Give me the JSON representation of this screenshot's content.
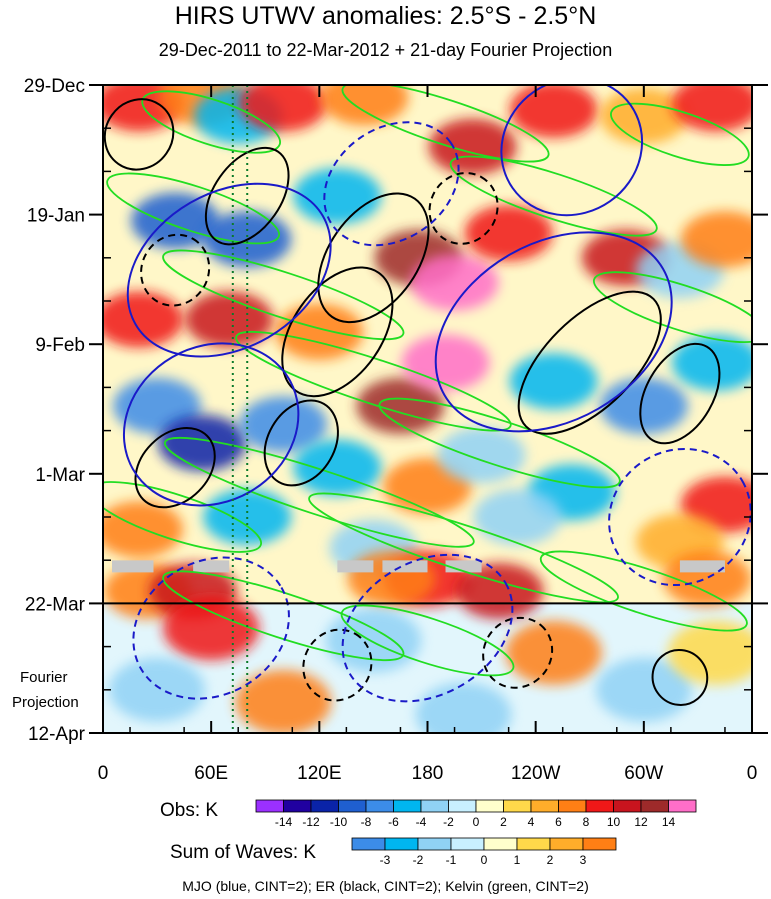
{
  "chart_data": {
    "type": "heatmap",
    "title": "HIRS UTWV anomalies: 2.5°S - 2.5°N",
    "subtitle": "29-Dec-2011 to 22-Mar-2012 + 21-day Fourier Projection",
    "x_ticks": [
      "0",
      "60E",
      "120E",
      "180",
      "120W",
      "60W",
      "0"
    ],
    "x_tick_degrees": [
      0,
      60,
      120,
      180,
      240,
      300,
      360
    ],
    "y_ticks": [
      "29-Dec",
      "19-Jan",
      "9-Feb",
      "1-Mar",
      "22-Mar",
      "12-Apr"
    ],
    "y_tick_days": [
      0,
      21,
      42,
      63,
      84,
      105
    ],
    "xlim": [
      0,
      360
    ],
    "ylim_days": [
      0,
      105
    ],
    "observation_end_day": 84,
    "projection_label": [
      "Fourier",
      "Projection"
    ],
    "obs_colorbar": {
      "label": "Obs: K",
      "levels": [
        "-14",
        "-12",
        "-10",
        "-8",
        "-6",
        "-4",
        "-2",
        "0",
        "2",
        "4",
        "6",
        "8",
        "10",
        "12",
        "14"
      ],
      "colors": [
        "#9b30ff",
        "#2000a0",
        "#0a23a8",
        "#1f5fd0",
        "#3c8ce8",
        "#00b6f0",
        "#90d2f5",
        "#c8f0ff",
        "#ffffcc",
        "#ffd94a",
        "#ffad2a",
        "#ff7f15",
        "#f01818",
        "#c8141e",
        "#9e2a2a",
        "#ff6ec8"
      ]
    },
    "wave_colorbar": {
      "label": "Sum of Waves: K",
      "levels": [
        "-3",
        "-2",
        "-1",
        "0",
        "1",
        "2",
        "3"
      ],
      "colors": [
        "#3c8ce8",
        "#00b6f0",
        "#90d2f5",
        "#c8f0ff",
        "#ffffcc",
        "#ffd94a",
        "#ffad2a",
        "#ff7f15"
      ]
    },
    "contour_series": [
      {
        "name": "MJO",
        "color": "#1a1ac8",
        "cint": 2
      },
      {
        "name": "ER",
        "color": "#000000",
        "cint": 2
      },
      {
        "name": "Kelvin",
        "color": "#22dd22",
        "cint": 2
      }
    ],
    "reference_lines_degrees": [
      72,
      80
    ],
    "anomaly_blobs": [
      {
        "lon": 20,
        "day": 3,
        "value": 8
      },
      {
        "lon": 55,
        "day": 2,
        "value": 6
      },
      {
        "lon": 75,
        "day": 5,
        "value": -6
      },
      {
        "lon": 100,
        "day": 3,
        "value": 8
      },
      {
        "lon": 145,
        "day": 2,
        "value": 6
      },
      {
        "lon": 205,
        "day": 10,
        "value": 10
      },
      {
        "lon": 250,
        "day": 4,
        "value": 8
      },
      {
        "lon": 300,
        "day": 5,
        "value": 4
      },
      {
        "lon": 340,
        "day": 3,
        "value": 8
      },
      {
        "lon": 40,
        "day": 22,
        "value": -10
      },
      {
        "lon": 80,
        "day": 25,
        "value": -10
      },
      {
        "lon": 130,
        "day": 18,
        "value": -6
      },
      {
        "lon": 175,
        "day": 28,
        "value": 12
      },
      {
        "lon": 195,
        "day": 32,
        "value": 14
      },
      {
        "lon": 225,
        "day": 24,
        "value": 8
      },
      {
        "lon": 290,
        "day": 28,
        "value": 10
      },
      {
        "lon": 320,
        "day": 30,
        "value": -4
      },
      {
        "lon": 345,
        "day": 25,
        "value": 6
      },
      {
        "lon": 20,
        "day": 38,
        "value": 8
      },
      {
        "lon": 70,
        "day": 38,
        "value": 10
      },
      {
        "lon": 120,
        "day": 40,
        "value": 6
      },
      {
        "lon": 165,
        "day": 52,
        "value": 12
      },
      {
        "lon": 190,
        "day": 45,
        "value": 14
      },
      {
        "lon": 250,
        "day": 48,
        "value": -6
      },
      {
        "lon": 300,
        "day": 52,
        "value": -8
      },
      {
        "lon": 340,
        "day": 45,
        "value": -6
      },
      {
        "lon": 30,
        "day": 52,
        "value": -8
      },
      {
        "lon": 55,
        "day": 58,
        "value": -12
      },
      {
        "lon": 100,
        "day": 55,
        "value": -8
      },
      {
        "lon": 130,
        "day": 62,
        "value": -6
      },
      {
        "lon": 180,
        "day": 65,
        "value": 6
      },
      {
        "lon": 210,
        "day": 60,
        "value": -4
      },
      {
        "lon": 260,
        "day": 66,
        "value": -6
      },
      {
        "lon": 345,
        "day": 68,
        "value": 8
      },
      {
        "lon": 20,
        "day": 72,
        "value": 6
      },
      {
        "lon": 80,
        "day": 70,
        "value": -6
      },
      {
        "lon": 150,
        "day": 75,
        "value": -4
      },
      {
        "lon": 230,
        "day": 70,
        "value": -4
      },
      {
        "lon": 320,
        "day": 74,
        "value": 4
      },
      {
        "lon": 25,
        "day": 82,
        "value": 6
      },
      {
        "lon": 50,
        "day": 82,
        "value": 10
      },
      {
        "lon": 180,
        "day": 80,
        "value": 8
      },
      {
        "lon": 220,
        "day": 82,
        "value": 10
      },
      {
        "lon": 160,
        "day": 80,
        "value": 6
      },
      {
        "lon": 335,
        "day": 80,
        "value": 6
      },
      {
        "lon": 60,
        "day": 88,
        "value": 3
      },
      {
        "lon": 150,
        "day": 90,
        "value": -1
      },
      {
        "lon": 250,
        "day": 92,
        "value": 2
      },
      {
        "lon": 30,
        "day": 98,
        "value": -1
      },
      {
        "lon": 100,
        "day": 100,
        "value": 2
      },
      {
        "lon": 200,
        "day": 102,
        "value": -1
      },
      {
        "lon": 300,
        "day": 98,
        "value": -1
      },
      {
        "lon": 340,
        "day": 92,
        "value": 1
      }
    ],
    "missing_data": [
      {
        "lon_start": 5,
        "lon_end": 28,
        "day": 78
      },
      {
        "lon_start": 50,
        "lon_end": 70,
        "day": 78
      },
      {
        "lon_start": 130,
        "lon_end": 150,
        "day": 78
      },
      {
        "lon_start": 155,
        "lon_end": 180,
        "day": 78
      },
      {
        "lon_start": 190,
        "lon_end": 210,
        "day": 78
      },
      {
        "lon_start": 320,
        "lon_end": 345,
        "day": 78
      }
    ],
    "wave_contours": [
      {
        "series": "Kelvin",
        "lon": 60,
        "day": 6,
        "rx": 40,
        "ry": 4,
        "angle": 18,
        "dashed": false
      },
      {
        "series": "Kelvin",
        "lon": 190,
        "day": 6,
        "rx": 60,
        "ry": 4,
        "angle": 18,
        "dashed": false
      },
      {
        "series": "Kelvin",
        "lon": 320,
        "day": 8,
        "rx": 40,
        "ry": 4,
        "angle": 18,
        "dashed": false
      },
      {
        "series": "Kelvin",
        "lon": 50,
        "day": 20,
        "rx": 50,
        "ry": 4,
        "angle": 18,
        "dashed": false
      },
      {
        "series": "Kelvin",
        "lon": 250,
        "day": 18,
        "rx": 60,
        "ry": 4,
        "angle": 18,
        "dashed": false
      },
      {
        "series": "Kelvin",
        "lon": 100,
        "day": 34,
        "rx": 70,
        "ry": 4,
        "angle": 18,
        "dashed": false
      },
      {
        "series": "Kelvin",
        "lon": 320,
        "day": 36,
        "rx": 50,
        "ry": 4,
        "angle": 18,
        "dashed": false
      },
      {
        "series": "Kelvin",
        "lon": 150,
        "day": 48,
        "rx": 80,
        "ry": 4,
        "angle": 18,
        "dashed": false
      },
      {
        "series": "Kelvin",
        "lon": 220,
        "day": 58,
        "rx": 70,
        "ry": 4,
        "angle": 18,
        "dashed": false
      },
      {
        "series": "Kelvin",
        "lon": 120,
        "day": 66,
        "rx": 90,
        "ry": 4,
        "angle": 18,
        "dashed": false
      },
      {
        "series": "Kelvin",
        "lon": 200,
        "day": 75,
        "rx": 90,
        "ry": 4,
        "angle": 18,
        "dashed": false
      },
      {
        "series": "Kelvin",
        "lon": 40,
        "day": 70,
        "rx": 50,
        "ry": 4,
        "angle": 18,
        "dashed": false
      },
      {
        "series": "Kelvin",
        "lon": 300,
        "day": 82,
        "rx": 60,
        "ry": 4,
        "angle": 18,
        "dashed": false
      },
      {
        "series": "Kelvin",
        "lon": 100,
        "day": 86,
        "rx": 70,
        "ry": 4,
        "angle": 18,
        "dashed": false
      },
      {
        "series": "Kelvin",
        "lon": 180,
        "day": 90,
        "rx": 50,
        "ry": 4,
        "angle": 18,
        "dashed": false
      },
      {
        "series": "ER",
        "lon": 20,
        "day": 8,
        "rx": 20,
        "ry": 6,
        "angle": -55,
        "dashed": false
      },
      {
        "series": "ER",
        "lon": 80,
        "day": 18,
        "rx": 30,
        "ry": 6,
        "angle": -55,
        "dashed": false
      },
      {
        "series": "ER",
        "lon": 150,
        "day": 28,
        "rx": 40,
        "ry": 8,
        "angle": -55,
        "dashed": false
      },
      {
        "series": "ER",
        "lon": 130,
        "day": 40,
        "rx": 40,
        "ry": 8,
        "angle": -55,
        "dashed": false
      },
      {
        "series": "ER",
        "lon": 270,
        "day": 45,
        "rx": 50,
        "ry": 8,
        "angle": -45,
        "dashed": false
      },
      {
        "series": "ER",
        "lon": 320,
        "day": 50,
        "rx": 30,
        "ry": 6,
        "angle": -60,
        "dashed": false
      },
      {
        "series": "ER",
        "lon": 40,
        "day": 62,
        "rx": 25,
        "ry": 6,
        "angle": -45,
        "dashed": false
      },
      {
        "series": "ER",
        "lon": 110,
        "day": 58,
        "rx": 25,
        "ry": 6,
        "angle": -60,
        "dashed": false
      },
      {
        "series": "ER",
        "lon": 40,
        "day": 30,
        "rx": 20,
        "ry": 6,
        "angle": -60,
        "dashed": true
      },
      {
        "series": "ER",
        "lon": 200,
        "day": 20,
        "rx": 20,
        "ry": 6,
        "angle": -60,
        "dashed": true
      },
      {
        "series": "ER",
        "lon": 230,
        "day": 92,
        "rx": 20,
        "ry": 6,
        "angle": -50,
        "dashed": true
      },
      {
        "series": "ER",
        "lon": 130,
        "day": 94,
        "rx": 20,
        "ry": 6,
        "angle": -60,
        "dashed": true
      },
      {
        "series": "ER",
        "lon": 320,
        "day": 96,
        "rx": 15,
        "ry": 5,
        "angle": -40,
        "dashed": false
      },
      {
        "series": "MJO",
        "lon": 70,
        "day": 30,
        "rx": 60,
        "ry": 14,
        "angle": -30,
        "dashed": false
      },
      {
        "series": "MJO",
        "lon": 250,
        "day": 40,
        "rx": 70,
        "ry": 16,
        "angle": -30,
        "dashed": false
      },
      {
        "series": "MJO",
        "lon": 260,
        "day": 10,
        "rx": 40,
        "ry": 12,
        "angle": -35,
        "dashed": false
      },
      {
        "series": "MJO",
        "lon": 60,
        "day": 55,
        "rx": 50,
        "ry": 14,
        "angle": -30,
        "dashed": false
      },
      {
        "series": "MJO",
        "lon": 160,
        "day": 16,
        "rx": 40,
        "ry": 10,
        "angle": -35,
        "dashed": true
      },
      {
        "series": "MJO",
        "lon": 320,
        "day": 70,
        "rx": 40,
        "ry": 12,
        "angle": -30,
        "dashed": true
      },
      {
        "series": "MJO",
        "lon": 60,
        "day": 88,
        "rx": 45,
        "ry": 12,
        "angle": -30,
        "dashed": true
      },
      {
        "series": "MJO",
        "lon": 180,
        "day": 88,
        "rx": 50,
        "ry": 12,
        "angle": -30,
        "dashed": true
      }
    ],
    "caption": "MJO (blue, CINT=2); ER (black, CINT=2); Kelvin (green, CINT=2)"
  }
}
